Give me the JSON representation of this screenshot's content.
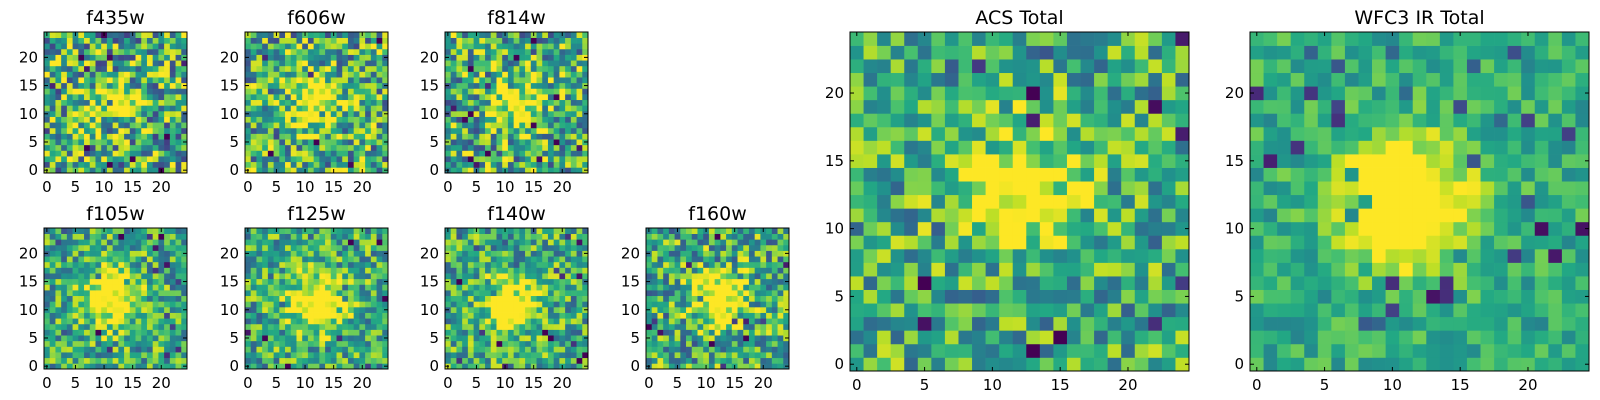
{
  "figure": {
    "colormap": "viridis"
  },
  "chart_data": [
    {
      "type": "heatmap",
      "title": "f435w",
      "xlim": [
        0,
        24
      ],
      "ylim": [
        0,
        24
      ],
      "xticks": [
        "0",
        "5",
        "10",
        "15",
        "20"
      ],
      "yticks": [
        "0",
        "5",
        "10",
        "15",
        "20"
      ],
      "grid_size": 25,
      "source_center": [
        12,
        12
      ],
      "source_strength": 0.3,
      "noise": 0.55
    },
    {
      "type": "heatmap",
      "title": "f606w",
      "xlim": [
        0,
        24
      ],
      "ylim": [
        0,
        24
      ],
      "xticks": [
        "0",
        "5",
        "10",
        "15",
        "20"
      ],
      "yticks": [
        "0",
        "5",
        "10",
        "15",
        "20"
      ],
      "grid_size": 25,
      "source_center": [
        12,
        12
      ],
      "source_strength": 0.55,
      "noise": 0.5
    },
    {
      "type": "heatmap",
      "title": "f814w",
      "xlim": [
        0,
        24
      ],
      "ylim": [
        0,
        24
      ],
      "xticks": [
        "0",
        "5",
        "10",
        "15",
        "20"
      ],
      "yticks": [
        "0",
        "5",
        "10",
        "15",
        "20"
      ],
      "grid_size": 25,
      "source_center": [
        12,
        12
      ],
      "source_strength": 0.5,
      "noise": 0.5
    },
    {
      "type": "heatmap",
      "title": "f105w",
      "xlim": [
        0,
        24
      ],
      "ylim": [
        0,
        24
      ],
      "xticks": [
        "0",
        "5",
        "10",
        "15",
        "20"
      ],
      "yticks": [
        "0",
        "5",
        "10",
        "15",
        "20"
      ],
      "grid_size": 25,
      "source_center": [
        11,
        12
      ],
      "source_strength": 0.6,
      "noise": 0.4
    },
    {
      "type": "heatmap",
      "title": "f125w",
      "xlim": [
        0,
        24
      ],
      "ylim": [
        0,
        24
      ],
      "xticks": [
        "0",
        "5",
        "10",
        "15",
        "20"
      ],
      "yticks": [
        "0",
        "5",
        "10",
        "15",
        "20"
      ],
      "grid_size": 25,
      "source_center": [
        12,
        11
      ],
      "source_strength": 0.6,
      "noise": 0.4
    },
    {
      "type": "heatmap",
      "title": "f140w",
      "xlim": [
        0,
        24
      ],
      "ylim": [
        0,
        24
      ],
      "xticks": [
        "0",
        "5",
        "10",
        "15",
        "20"
      ],
      "yticks": [
        "0",
        "5",
        "10",
        "15",
        "20"
      ],
      "grid_size": 25,
      "source_center": [
        11,
        11
      ],
      "source_strength": 0.65,
      "noise": 0.4
    },
    {
      "type": "heatmap",
      "title": "f160w",
      "xlim": [
        0,
        24
      ],
      "ylim": [
        0,
        24
      ],
      "xticks": [
        "0",
        "5",
        "10",
        "15",
        "20"
      ],
      "yticks": [
        "0",
        "5",
        "10",
        "15",
        "20"
      ],
      "grid_size": 25,
      "source_center": [
        12,
        12
      ],
      "source_strength": 0.6,
      "noise": 0.45
    },
    {
      "type": "heatmap",
      "title": "ACS Total",
      "xlim": [
        0,
        24
      ],
      "ylim": [
        0,
        24
      ],
      "xticks": [
        "0",
        "5",
        "10",
        "15",
        "20"
      ],
      "yticks": [
        "0",
        "5",
        "10",
        "15",
        "20"
      ],
      "grid_size": 25,
      "source_center": [
        12,
        13
      ],
      "source_strength": 0.5,
      "noise": 0.4
    },
    {
      "type": "heatmap",
      "title": "WFC3 IR Total",
      "xlim": [
        0,
        24
      ],
      "ylim": [
        0,
        24
      ],
      "xticks": [
        "0",
        "5",
        "10",
        "15",
        "20"
      ],
      "yticks": [
        "0",
        "5",
        "10",
        "15",
        "20"
      ],
      "grid_size": 25,
      "source_center": [
        11,
        12
      ],
      "source_strength": 0.75,
      "noise": 0.22
    }
  ]
}
